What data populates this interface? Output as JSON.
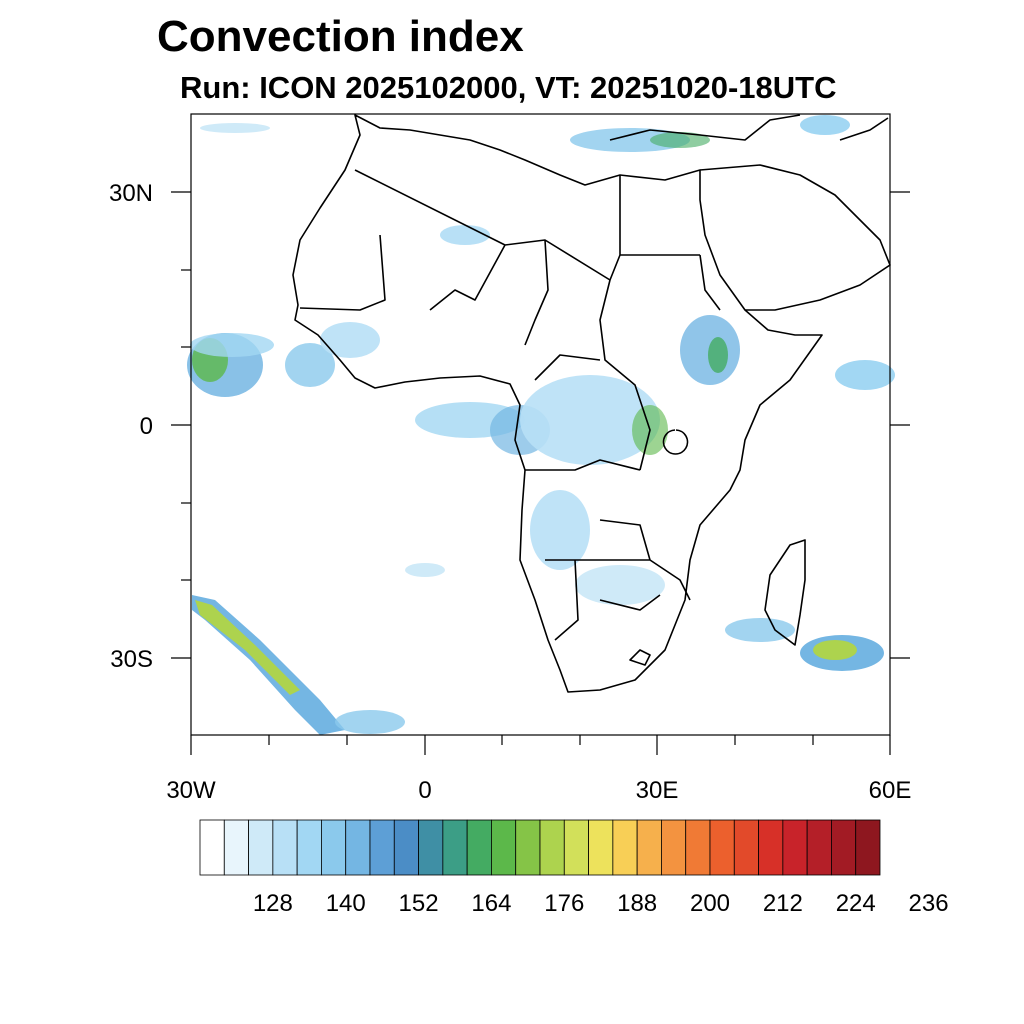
{
  "title": "Convection index",
  "subtitle": "Run: ICON 2025102000,  VT: 20251020-18UTC",
  "map": {
    "lon_range": [
      -30,
      60
    ],
    "lat_range": [
      -40,
      40
    ],
    "lon_ticks": [
      "30W",
      "0",
      "30E",
      "60E"
    ],
    "lat_ticks": [
      "30N",
      "0",
      "30S"
    ]
  },
  "colorbar": {
    "labels": [
      "128",
      "140",
      "152",
      "164",
      "176",
      "188",
      "200",
      "212",
      "224",
      "236"
    ],
    "colors": [
      "#ffffff",
      "#e8f5fc",
      "#cfeaf8",
      "#b8e0f6",
      "#a2d7f3",
      "#8bc9ec",
      "#74b6e3",
      "#5d9fd6",
      "#4b8dc6",
      "#3f8fa5",
      "#3c9e86",
      "#44ab62",
      "#5cb84a",
      "#85c447",
      "#add34e",
      "#d2e05a",
      "#ede25c",
      "#f8cf56",
      "#f6b04c",
      "#f39340",
      "#f07a35",
      "#ec602d",
      "#e24a2a",
      "#d73028",
      "#c8232a",
      "#b41f28",
      "#a21b24",
      "#8e171f"
    ]
  }
}
